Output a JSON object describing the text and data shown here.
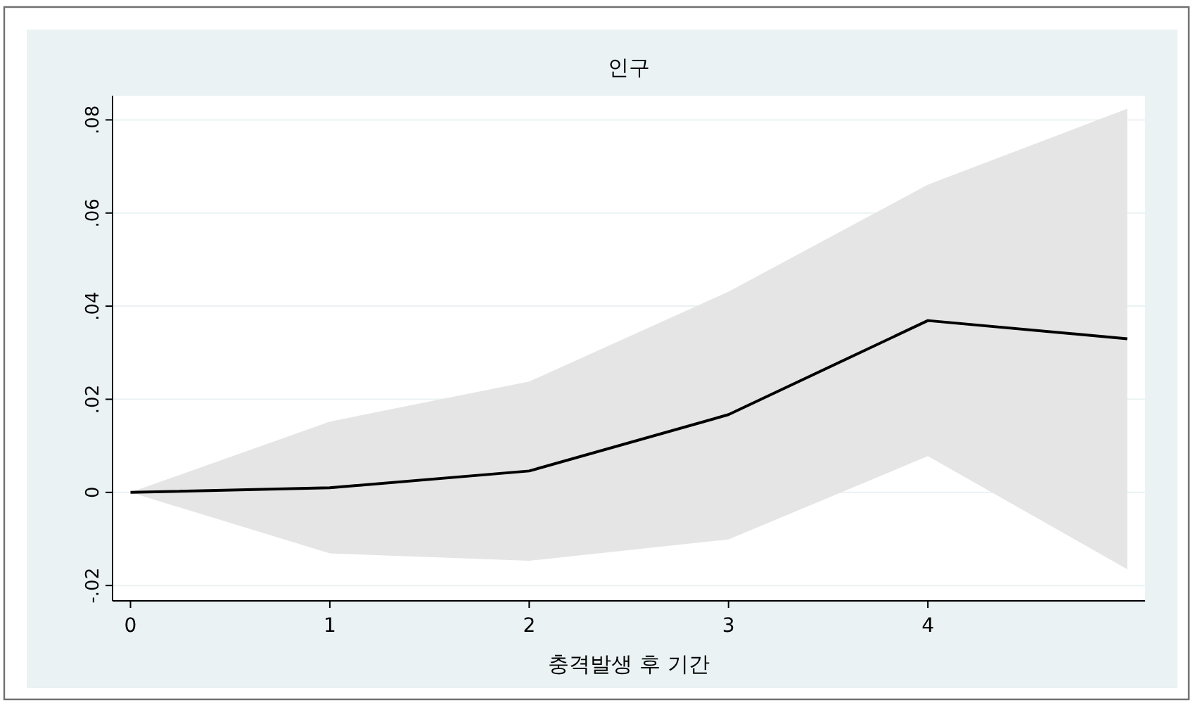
{
  "chart_data": {
    "type": "line",
    "title": "인구",
    "xlabel": "충격발생 후 기간",
    "x": [
      0,
      1,
      2,
      3,
      4,
      5
    ],
    "series": [
      {
        "color": "#000000",
        "values": [
          0,
          0.001,
          0.0046,
          0.0167,
          0.0369,
          0.033
        ],
        "lower": [
          0,
          -0.0131,
          -0.0147,
          -0.0101,
          0.0078,
          -0.0165
        ],
        "upper": [
          0,
          0.0152,
          0.0238,
          0.0431,
          0.0661,
          0.0824
        ]
      }
    ],
    "xlim": [
      -0.09,
      5.09
    ],
    "ylim": [
      -0.0233,
      0.0852
    ],
    "xticks": [
      0,
      1,
      2,
      3,
      4
    ],
    "yticks": [
      {
        "value": -0.02,
        "label": "-.02"
      },
      0,
      {
        "value": 0.02,
        "label": ".02"
      },
      {
        "value": 0.04,
        "label": ".04"
      },
      {
        "value": 0.06,
        "label": ".06"
      },
      {
        "value": 0.08,
        "label": ".08"
      }
    ],
    "grid": "y",
    "marker": "none",
    "line_style": "solid"
  }
}
